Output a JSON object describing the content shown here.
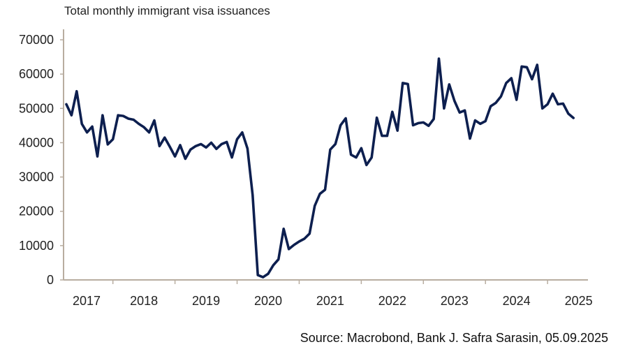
{
  "title": "Total monthly immigrant visa issuances",
  "source": "Source: Macrobond, Bank J. Safra Sarasin, 05.09.2025",
  "colors": {
    "line": "#0d1f4f",
    "axis": "#b8ada0",
    "text": "#222222"
  },
  "chart_data": {
    "type": "line",
    "title": "Total monthly immigrant visa issuances",
    "xlabel": "",
    "ylabel": "",
    "ylim": [
      0,
      70000
    ],
    "yticks": [
      0,
      10000,
      20000,
      30000,
      40000,
      50000,
      60000,
      70000
    ],
    "xtick_labels": [
      "2017",
      "2018",
      "2019",
      "2020",
      "2021",
      "2022",
      "2023",
      "2024",
      "2025"
    ],
    "x_start": "2017-04",
    "x_end": "2025-06",
    "frequency": "monthly",
    "grid": false,
    "legend": "none",
    "series": [
      {
        "name": "Immigrant visa issuances",
        "values": [
          51200,
          48000,
          55000,
          45500,
          43000,
          44700,
          36000,
          48000,
          39500,
          41000,
          48000,
          47800,
          47000,
          46700,
          45500,
          44500,
          43000,
          46500,
          39000,
          41500,
          38800,
          36000,
          39300,
          35300,
          38000,
          39000,
          39600,
          38600,
          40000,
          38200,
          39600,
          40200,
          35700,
          41000,
          43000,
          38300,
          24700,
          1400,
          800,
          1800,
          4300,
          6000,
          14900,
          9000,
          10200,
          11200,
          12000,
          13500,
          21600,
          25100,
          26300,
          38000,
          39600,
          45100,
          47100,
          36500,
          35700,
          38400,
          33500,
          35700,
          47300,
          42000,
          42000,
          49000,
          43500,
          57400,
          57100,
          45100,
          45700,
          45900,
          44900,
          46900,
          64500,
          50000,
          57000,
          52200,
          48800,
          49400,
          41200,
          46500,
          45500,
          46300,
          50600,
          51600,
          53500,
          57400,
          58800,
          52500,
          62200,
          62000,
          58500,
          62700,
          50000,
          51200,
          54300,
          51200,
          51400,
          48500,
          47200
        ]
      }
    ]
  }
}
